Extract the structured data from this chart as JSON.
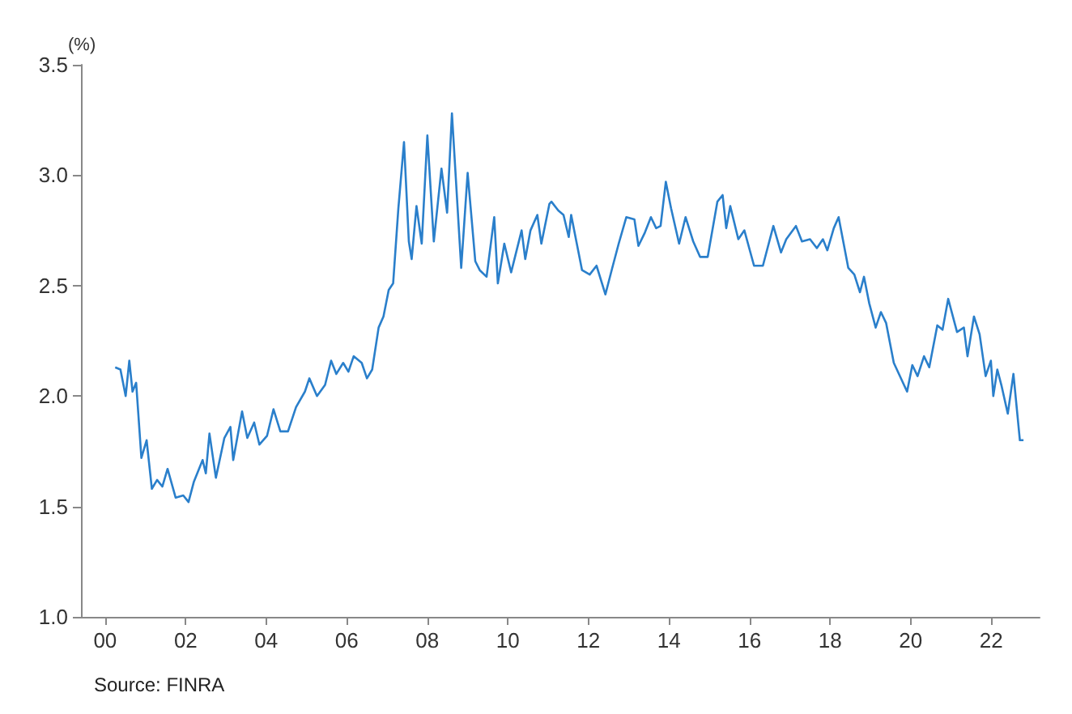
{
  "chart_data": {
    "type": "line",
    "ylabel": "(%)",
    "annotations": [
      "Source: FINRA"
    ],
    "xlim": [
      1999.4,
      2023.2
    ],
    "xticks": [
      {
        "value": 2000,
        "label": "00"
      },
      {
        "value": 2002,
        "label": "02"
      },
      {
        "value": 2004,
        "label": "04"
      },
      {
        "value": 2006,
        "label": "06"
      },
      {
        "value": 2008,
        "label": "08"
      },
      {
        "value": 2010,
        "label": "10"
      },
      {
        "value": 2012,
        "label": "12"
      },
      {
        "value": 2014,
        "label": "14"
      },
      {
        "value": 2016,
        "label": "16"
      },
      {
        "value": 2018,
        "label": "18"
      },
      {
        "value": 2020,
        "label": "20"
      },
      {
        "value": 2022,
        "label": "22"
      }
    ],
    "ylim": [
      1.0,
      3.5
    ],
    "yticks": [
      {
        "value": 1.0,
        "label": "1.0"
      },
      {
        "value": 1.5,
        "label": "1.5"
      },
      {
        "value": 2.0,
        "label": "2.0"
      },
      {
        "value": 2.5,
        "label": "2.5"
      },
      {
        "value": 3.0,
        "label": "3.0"
      },
      {
        "value": 3.5,
        "label": "3.5"
      }
    ],
    "grid": false,
    "marker": "none",
    "line_style": "solid",
    "x": [
      2000.25,
      2000.38,
      2000.51,
      2000.6,
      2000.68,
      2000.77,
      2000.9,
      2001.03,
      2001.16,
      2001.29,
      2001.42,
      2001.55,
      2001.75,
      2001.94,
      2002.07,
      2002.2,
      2002.42,
      2002.5,
      2002.59,
      2002.75,
      2002.96,
      2003.11,
      2003.18,
      2003.4,
      2003.53,
      2003.7,
      2003.83,
      2004.02,
      2004.18,
      2004.35,
      2004.54,
      2004.74,
      2004.96,
      2005.07,
      2005.26,
      2005.46,
      2005.61,
      2005.74,
      2005.91,
      2006.04,
      2006.17,
      2006.37,
      2006.5,
      2006.63,
      2006.79,
      2006.91,
      2007.04,
      2007.15,
      2007.28,
      2007.42,
      2007.54,
      2007.61,
      2007.73,
      2007.86,
      2008.0,
      2008.16,
      2008.35,
      2008.49,
      2008.61,
      2008.84,
      2009.0,
      2009.19,
      2009.3,
      2009.47,
      2009.66,
      2009.75,
      2009.91,
      2010.08,
      2010.34,
      2010.43,
      2010.56,
      2010.73,
      2010.83,
      2011.03,
      2011.08,
      2011.25,
      2011.38,
      2011.51,
      2011.57,
      2011.71,
      2011.84,
      2012.03,
      2012.2,
      2012.42,
      2012.59,
      2012.75,
      2012.94,
      2013.14,
      2013.24,
      2013.4,
      2013.55,
      2013.68,
      2013.79,
      2013.92,
      2014.05,
      2014.25,
      2014.41,
      2014.6,
      2014.77,
      2014.96,
      2015.2,
      2015.33,
      2015.42,
      2015.52,
      2015.72,
      2015.87,
      2016.11,
      2016.33,
      2016.59,
      2016.78,
      2016.91,
      2017.15,
      2017.3,
      2017.5,
      2017.67,
      2017.82,
      2017.93,
      2018.09,
      2018.21,
      2018.45,
      2018.6,
      2018.74,
      2018.84,
      2018.97,
      2019.13,
      2019.26,
      2019.39,
      2019.58,
      2019.91,
      2020.04,
      2020.17,
      2020.33,
      2020.46,
      2020.66,
      2020.79,
      2020.93,
      2021.15,
      2021.32,
      2021.41,
      2021.57,
      2021.71,
      2021.86,
      2021.99,
      2022.05,
      2022.15,
      2022.25,
      2022.41,
      2022.55,
      2022.71,
      2022.8
    ],
    "series": [
      {
        "color": "#2a7fcb",
        "values": [
          2.13,
          2.12,
          2.0,
          2.16,
          2.02,
          2.06,
          1.72,
          1.8,
          1.58,
          1.62,
          1.59,
          1.67,
          1.54,
          1.55,
          1.52,
          1.61,
          1.71,
          1.65,
          1.83,
          1.63,
          1.81,
          1.86,
          1.71,
          1.93,
          1.81,
          1.88,
          1.78,
          1.82,
          1.94,
          1.84,
          1.84,
          1.95,
          2.02,
          2.08,
          2.0,
          2.05,
          2.16,
          2.1,
          2.15,
          2.11,
          2.18,
          2.15,
          2.08,
          2.12,
          2.31,
          2.36,
          2.48,
          2.51,
          2.85,
          3.15,
          2.7,
          2.62,
          2.86,
          2.69,
          3.18,
          2.7,
          3.03,
          2.83,
          3.28,
          2.58,
          3.01,
          2.61,
          2.57,
          2.54,
          2.81,
          2.51,
          2.69,
          2.56,
          2.75,
          2.62,
          2.75,
          2.82,
          2.69,
          2.87,
          2.88,
          2.84,
          2.82,
          2.72,
          2.82,
          2.69,
          2.57,
          2.55,
          2.59,
          2.46,
          2.58,
          2.69,
          2.81,
          2.8,
          2.68,
          2.74,
          2.81,
          2.76,
          2.77,
          2.97,
          2.85,
          2.69,
          2.81,
          2.7,
          2.63,
          2.63,
          2.88,
          2.91,
          2.76,
          2.86,
          2.71,
          2.75,
          2.59,
          2.59,
          2.77,
          2.65,
          2.71,
          2.77,
          2.7,
          2.71,
          2.67,
          2.71,
          2.66,
          2.76,
          2.81,
          2.58,
          2.55,
          2.47,
          2.54,
          2.42,
          2.31,
          2.38,
          2.33,
          2.15,
          2.02,
          2.14,
          2.09,
          2.18,
          2.13,
          2.32,
          2.3,
          2.44,
          2.29,
          2.31,
          2.18,
          2.36,
          2.28,
          2.09,
          2.16,
          2.0,
          2.12,
          2.05,
          1.92,
          2.1,
          1.8,
          1.8
        ]
      }
    ]
  }
}
